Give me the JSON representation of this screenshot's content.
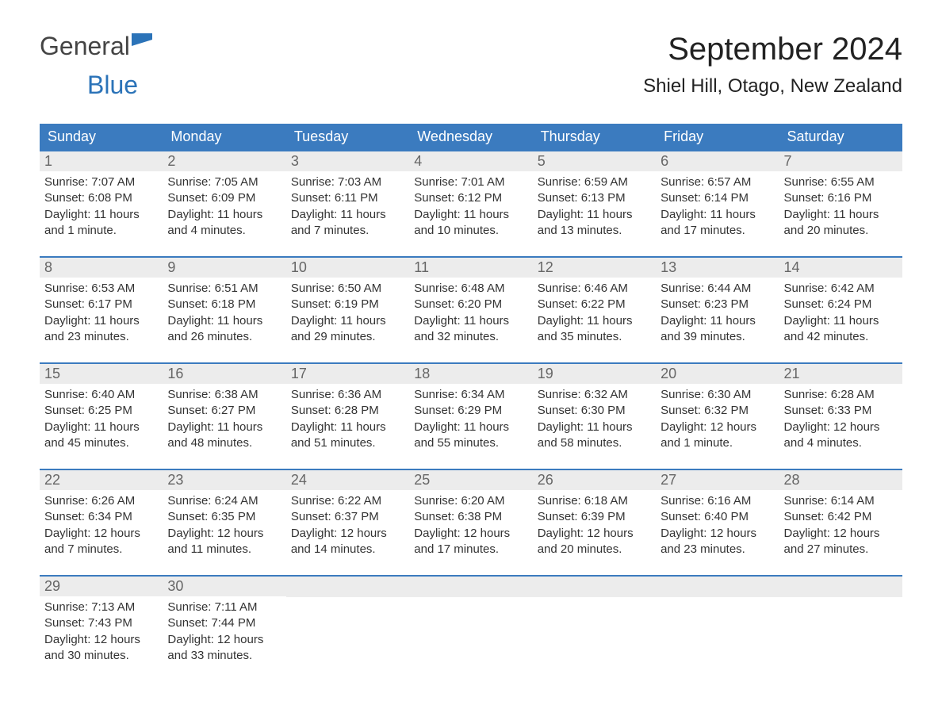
{
  "logo": {
    "text_general": "General",
    "text_blue": "Blue",
    "flag_color": "#2b73b8"
  },
  "header": {
    "month_title": "September 2024",
    "location": "Shiel Hill, Otago, New Zealand"
  },
  "style": {
    "header_bg": "#3b7bbf",
    "header_fg": "#ffffff",
    "daynum_bg": "#ececec",
    "daynum_fg": "#666666",
    "body_fg": "#333333",
    "row_border": "#3b7bbf",
    "page_bg": "#ffffff",
    "month_title_fontsize": 40,
    "location_fontsize": 24,
    "header_fontsize": 18,
    "daynum_fontsize": 18,
    "body_fontsize": 15
  },
  "columns": [
    "Sunday",
    "Monday",
    "Tuesday",
    "Wednesday",
    "Thursday",
    "Friday",
    "Saturday"
  ],
  "weeks": [
    [
      {
        "n": "1",
        "sr": "7:07 AM",
        "ss": "6:08 PM",
        "dl": "11 hours and 1 minute."
      },
      {
        "n": "2",
        "sr": "7:05 AM",
        "ss": "6:09 PM",
        "dl": "11 hours and 4 minutes."
      },
      {
        "n": "3",
        "sr": "7:03 AM",
        "ss": "6:11 PM",
        "dl": "11 hours and 7 minutes."
      },
      {
        "n": "4",
        "sr": "7:01 AM",
        "ss": "6:12 PM",
        "dl": "11 hours and 10 minutes."
      },
      {
        "n": "5",
        "sr": "6:59 AM",
        "ss": "6:13 PM",
        "dl": "11 hours and 13 minutes."
      },
      {
        "n": "6",
        "sr": "6:57 AM",
        "ss": "6:14 PM",
        "dl": "11 hours and 17 minutes."
      },
      {
        "n": "7",
        "sr": "6:55 AM",
        "ss": "6:16 PM",
        "dl": "11 hours and 20 minutes."
      }
    ],
    [
      {
        "n": "8",
        "sr": "6:53 AM",
        "ss": "6:17 PM",
        "dl": "11 hours and 23 minutes."
      },
      {
        "n": "9",
        "sr": "6:51 AM",
        "ss": "6:18 PM",
        "dl": "11 hours and 26 minutes."
      },
      {
        "n": "10",
        "sr": "6:50 AM",
        "ss": "6:19 PM",
        "dl": "11 hours and 29 minutes."
      },
      {
        "n": "11",
        "sr": "6:48 AM",
        "ss": "6:20 PM",
        "dl": "11 hours and 32 minutes."
      },
      {
        "n": "12",
        "sr": "6:46 AM",
        "ss": "6:22 PM",
        "dl": "11 hours and 35 minutes."
      },
      {
        "n": "13",
        "sr": "6:44 AM",
        "ss": "6:23 PM",
        "dl": "11 hours and 39 minutes."
      },
      {
        "n": "14",
        "sr": "6:42 AM",
        "ss": "6:24 PM",
        "dl": "11 hours and 42 minutes."
      }
    ],
    [
      {
        "n": "15",
        "sr": "6:40 AM",
        "ss": "6:25 PM",
        "dl": "11 hours and 45 minutes."
      },
      {
        "n": "16",
        "sr": "6:38 AM",
        "ss": "6:27 PM",
        "dl": "11 hours and 48 minutes."
      },
      {
        "n": "17",
        "sr": "6:36 AM",
        "ss": "6:28 PM",
        "dl": "11 hours and 51 minutes."
      },
      {
        "n": "18",
        "sr": "6:34 AM",
        "ss": "6:29 PM",
        "dl": "11 hours and 55 minutes."
      },
      {
        "n": "19",
        "sr": "6:32 AM",
        "ss": "6:30 PM",
        "dl": "11 hours and 58 minutes."
      },
      {
        "n": "20",
        "sr": "6:30 AM",
        "ss": "6:32 PM",
        "dl": "12 hours and 1 minute."
      },
      {
        "n": "21",
        "sr": "6:28 AM",
        "ss": "6:33 PM",
        "dl": "12 hours and 4 minutes."
      }
    ],
    [
      {
        "n": "22",
        "sr": "6:26 AM",
        "ss": "6:34 PM",
        "dl": "12 hours and 7 minutes."
      },
      {
        "n": "23",
        "sr": "6:24 AM",
        "ss": "6:35 PM",
        "dl": "12 hours and 11 minutes."
      },
      {
        "n": "24",
        "sr": "6:22 AM",
        "ss": "6:37 PM",
        "dl": "12 hours and 14 minutes."
      },
      {
        "n": "25",
        "sr": "6:20 AM",
        "ss": "6:38 PM",
        "dl": "12 hours and 17 minutes."
      },
      {
        "n": "26",
        "sr": "6:18 AM",
        "ss": "6:39 PM",
        "dl": "12 hours and 20 minutes."
      },
      {
        "n": "27",
        "sr": "6:16 AM",
        "ss": "6:40 PM",
        "dl": "12 hours and 23 minutes."
      },
      {
        "n": "28",
        "sr": "6:14 AM",
        "ss": "6:42 PM",
        "dl": "12 hours and 27 minutes."
      }
    ],
    [
      {
        "n": "29",
        "sr": "7:13 AM",
        "ss": "7:43 PM",
        "dl": "12 hours and 30 minutes."
      },
      {
        "n": "30",
        "sr": "7:11 AM",
        "ss": "7:44 PM",
        "dl": "12 hours and 33 minutes."
      },
      null,
      null,
      null,
      null,
      null
    ]
  ],
  "labels": {
    "sunrise_prefix": "Sunrise: ",
    "sunset_prefix": "Sunset: ",
    "daylight_prefix": "Daylight: "
  }
}
